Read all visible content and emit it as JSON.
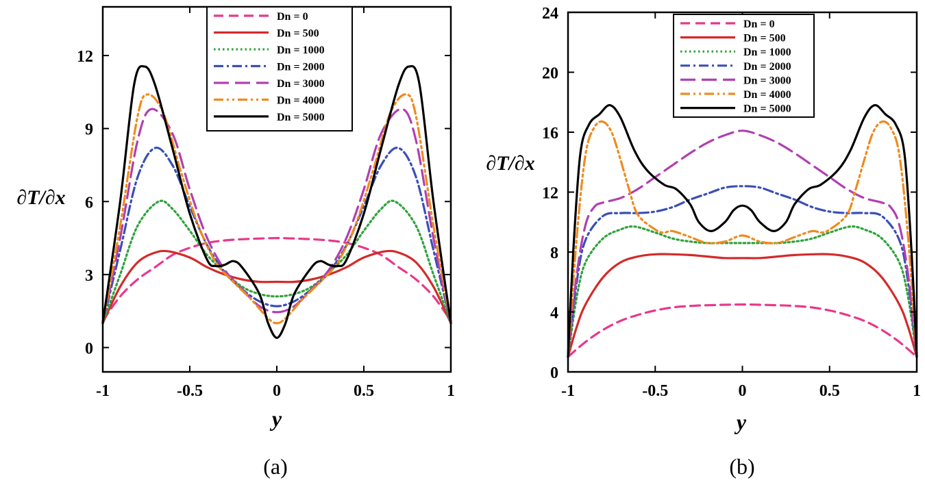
{
  "chart_data": [
    {
      "type": "line",
      "caption": "(a)",
      "xlabel": "y",
      "ylabel": "∂T/∂x",
      "xlim": [
        -1,
        1
      ],
      "ylim": [
        -1,
        14
      ],
      "xticks": [
        "-1",
        "-0.5",
        "0",
        "0.5",
        "1"
      ],
      "yticks": [
        "0",
        "3",
        "6",
        "9",
        "12"
      ],
      "legend_position": "top-center",
      "series": [
        {
          "name": "Dn = 0",
          "color": "#e8388a",
          "dash": "dashed",
          "x": [
            -1,
            -0.9,
            -0.8,
            -0.7,
            -0.6,
            -0.5,
            -0.4,
            -0.3,
            -0.2,
            -0.1,
            0,
            0.1,
            0.2,
            0.3,
            0.4,
            0.5,
            0.6,
            0.7,
            0.8,
            0.9,
            1
          ],
          "y": [
            1.1,
            2.1,
            2.8,
            3.3,
            3.8,
            4.1,
            4.3,
            4.4,
            4.45,
            4.48,
            4.5,
            4.48,
            4.45,
            4.4,
            4.3,
            4.1,
            3.8,
            3.3,
            2.8,
            2.1,
            1.1
          ]
        },
        {
          "name": "Dn = 500",
          "color": "#d42a2a",
          "dash": "solid",
          "x": [
            -1,
            -0.9,
            -0.8,
            -0.7,
            -0.62,
            -0.5,
            -0.4,
            -0.3,
            -0.2,
            -0.1,
            0,
            0.1,
            0.2,
            0.3,
            0.4,
            0.5,
            0.62,
            0.7,
            0.8,
            0.9,
            1
          ],
          "y": [
            1.0,
            2.5,
            3.5,
            3.9,
            3.95,
            3.7,
            3.3,
            3.0,
            2.8,
            2.7,
            2.7,
            2.7,
            2.8,
            3.0,
            3.3,
            3.7,
            3.95,
            3.9,
            3.5,
            2.5,
            1.0
          ]
        },
        {
          "name": "Dn = 1000",
          "color": "#2ea33a",
          "dash": "dotted",
          "x": [
            -1,
            -0.9,
            -0.8,
            -0.68,
            -0.6,
            -0.5,
            -0.4,
            -0.3,
            -0.2,
            -0.1,
            0,
            0.1,
            0.2,
            0.3,
            0.4,
            0.5,
            0.6,
            0.68,
            0.8,
            0.9,
            1
          ],
          "y": [
            1.0,
            3.0,
            5.0,
            6.0,
            5.7,
            4.8,
            3.8,
            3.1,
            2.5,
            2.2,
            2.1,
            2.2,
            2.5,
            3.1,
            3.8,
            4.8,
            5.7,
            6.0,
            5.0,
            3.0,
            1.0
          ]
        },
        {
          "name": "Dn = 2000",
          "color": "#3a4fb5",
          "dash": "dashdot",
          "x": [
            -1,
            -0.9,
            -0.8,
            -0.7,
            -0.6,
            -0.5,
            -0.4,
            -0.3,
            -0.2,
            -0.1,
            0,
            0.1,
            0.2,
            0.3,
            0.4,
            0.5,
            0.6,
            0.7,
            0.8,
            0.9,
            1
          ],
          "y": [
            1.0,
            4.0,
            7.0,
            8.2,
            7.5,
            5.8,
            4.2,
            3.1,
            2.4,
            1.9,
            1.7,
            1.9,
            2.4,
            3.1,
            4.2,
            5.8,
            7.5,
            8.2,
            7.0,
            4.0,
            1.0
          ]
        },
        {
          "name": "Dn = 3000",
          "color": "#b040b0",
          "dash": "longdash",
          "x": [
            -1,
            -0.9,
            -0.8,
            -0.72,
            -0.6,
            -0.5,
            -0.4,
            -0.3,
            -0.2,
            -0.1,
            0,
            0.1,
            0.2,
            0.3,
            0.4,
            0.5,
            0.6,
            0.72,
            0.8,
            0.9,
            1
          ],
          "y": [
            1.0,
            4.5,
            8.5,
            9.8,
            8.8,
            6.5,
            4.5,
            3.2,
            2.4,
            1.7,
            1.45,
            1.7,
            2.4,
            3.2,
            4.5,
            6.5,
            8.8,
            9.8,
            8.5,
            4.5,
            1.0
          ]
        },
        {
          "name": "Dn = 4000",
          "color": "#f08a1e",
          "dash": "dashdotdot",
          "x": [
            -1,
            -0.9,
            -0.8,
            -0.74,
            -0.65,
            -0.55,
            -0.45,
            -0.35,
            -0.25,
            -0.15,
            -0.05,
            0,
            0.05,
            0.15,
            0.25,
            0.35,
            0.45,
            0.55,
            0.65,
            0.74,
            0.8,
            0.9,
            1
          ],
          "y": [
            1.0,
            5.0,
            9.5,
            10.4,
            9.6,
            7.2,
            5.0,
            3.5,
            2.7,
            2.0,
            1.2,
            1.0,
            1.2,
            2.0,
            2.7,
            3.5,
            5.0,
            7.2,
            9.6,
            10.4,
            9.5,
            5.0,
            1.0
          ]
        },
        {
          "name": "Dn = 5000",
          "color": "#000000",
          "dash": "solid",
          "x": [
            -1,
            -0.9,
            -0.82,
            -0.76,
            -0.7,
            -0.6,
            -0.5,
            -0.4,
            -0.35,
            -0.3,
            -0.25,
            -0.2,
            -0.1,
            -0.05,
            0,
            0.05,
            0.1,
            0.2,
            0.25,
            0.3,
            0.35,
            0.4,
            0.5,
            0.6,
            0.7,
            0.76,
            0.82,
            0.9,
            1
          ],
          "y": [
            1.0,
            6.0,
            10.8,
            11.55,
            10.8,
            8.2,
            5.5,
            3.6,
            3.35,
            3.4,
            3.55,
            3.3,
            2.2,
            1.0,
            0.4,
            1.0,
            2.2,
            3.3,
            3.55,
            3.4,
            3.35,
            3.6,
            5.5,
            8.2,
            10.8,
            11.55,
            10.8,
            6.0,
            1.0
          ]
        }
      ]
    },
    {
      "type": "line",
      "caption": "(b)",
      "xlabel": "y",
      "ylabel": "∂T/∂x",
      "xlim": [
        -1,
        1
      ],
      "ylim": [
        0,
        24
      ],
      "xticks": [
        "-1",
        "-0.5",
        "0",
        "0.5",
        "1"
      ],
      "yticks": [
        "0",
        "4",
        "8",
        "12",
        "16",
        "20",
        "24"
      ],
      "legend_position": "top-center",
      "series": [
        {
          "name": "Dn = 0",
          "color": "#e8388a",
          "dash": "dashed",
          "x": [
            -1,
            -0.9,
            -0.8,
            -0.7,
            -0.6,
            -0.5,
            -0.4,
            -0.3,
            -0.2,
            -0.1,
            0,
            0.1,
            0.2,
            0.3,
            0.4,
            0.5,
            0.6,
            0.7,
            0.8,
            0.9,
            1
          ],
          "y": [
            1.0,
            2.0,
            2.8,
            3.4,
            3.8,
            4.1,
            4.3,
            4.4,
            4.45,
            4.48,
            4.5,
            4.48,
            4.45,
            4.4,
            4.3,
            4.1,
            3.8,
            3.4,
            2.8,
            2.0,
            1.0
          ]
        },
        {
          "name": "Dn = 500",
          "color": "#d42a2a",
          "dash": "solid",
          "x": [
            -1,
            -0.95,
            -0.9,
            -0.8,
            -0.7,
            -0.6,
            -0.5,
            -0.4,
            -0.3,
            -0.2,
            -0.1,
            0,
            0.1,
            0.2,
            0.3,
            0.4,
            0.5,
            0.6,
            0.7,
            0.8,
            0.9,
            0.95,
            1
          ],
          "y": [
            1.0,
            3.0,
            4.5,
            6.3,
            7.3,
            7.7,
            7.85,
            7.85,
            7.8,
            7.7,
            7.6,
            7.6,
            7.6,
            7.7,
            7.8,
            7.85,
            7.85,
            7.7,
            7.3,
            6.3,
            4.5,
            3.0,
            1.0
          ]
        },
        {
          "name": "Dn = 1000",
          "color": "#2ea33a",
          "dash": "dotted",
          "x": [
            -1,
            -0.95,
            -0.9,
            -0.8,
            -0.7,
            -0.62,
            -0.5,
            -0.4,
            -0.3,
            -0.2,
            -0.1,
            0,
            0.1,
            0.2,
            0.3,
            0.4,
            0.5,
            0.62,
            0.7,
            0.8,
            0.9,
            0.95,
            1
          ],
          "y": [
            1.0,
            5.0,
            7.3,
            8.9,
            9.5,
            9.7,
            9.3,
            8.9,
            8.7,
            8.6,
            8.6,
            8.6,
            8.6,
            8.6,
            8.7,
            8.9,
            9.3,
            9.7,
            9.5,
            8.9,
            7.3,
            5.0,
            1.0
          ]
        },
        {
          "name": "Dn = 2000",
          "color": "#3a4fb5",
          "dash": "dashdot",
          "x": [
            -1,
            -0.95,
            -0.9,
            -0.8,
            -0.7,
            -0.6,
            -0.5,
            -0.4,
            -0.3,
            -0.2,
            -0.1,
            0,
            0.1,
            0.2,
            0.3,
            0.4,
            0.5,
            0.6,
            0.7,
            0.8,
            0.9,
            0.95,
            1
          ],
          "y": [
            1.0,
            6.0,
            8.8,
            10.4,
            10.6,
            10.6,
            10.7,
            11.0,
            11.5,
            11.9,
            12.3,
            12.4,
            12.3,
            11.9,
            11.5,
            11.0,
            10.7,
            10.6,
            10.6,
            10.4,
            8.8,
            6.0,
            1.0
          ]
        },
        {
          "name": "Dn = 3000",
          "color": "#b040b0",
          "dash": "longdash",
          "x": [
            -1,
            -0.95,
            -0.9,
            -0.85,
            -0.8,
            -0.7,
            -0.6,
            -0.5,
            -0.4,
            -0.3,
            -0.2,
            -0.1,
            0,
            0.1,
            0.2,
            0.3,
            0.4,
            0.5,
            0.6,
            0.7,
            0.8,
            0.85,
            0.9,
            0.95,
            1
          ],
          "y": [
            1.0,
            6.5,
            9.8,
            11.0,
            11.3,
            11.6,
            12.2,
            13.0,
            13.8,
            14.6,
            15.3,
            15.8,
            16.1,
            15.8,
            15.3,
            14.6,
            13.8,
            13.0,
            12.2,
            11.6,
            11.3,
            11.0,
            9.8,
            6.5,
            1.0
          ]
        },
        {
          "name": "Dn = 4000",
          "color": "#f08a1e",
          "dash": "dashdotdot",
          "x": [
            -1,
            -0.95,
            -0.9,
            -0.85,
            -0.8,
            -0.75,
            -0.7,
            -0.65,
            -0.6,
            -0.5,
            -0.45,
            -0.4,
            -0.3,
            -0.2,
            -0.1,
            0,
            0.1,
            0.2,
            0.3,
            0.4,
            0.45,
            0.5,
            0.6,
            0.65,
            0.7,
            0.75,
            0.8,
            0.85,
            0.9,
            0.95,
            1
          ],
          "y": [
            1.0,
            9.0,
            14.5,
            16.3,
            16.7,
            16.0,
            14.2,
            12.2,
            10.5,
            9.5,
            9.3,
            9.4,
            9.0,
            8.6,
            8.7,
            9.1,
            8.7,
            8.6,
            9.0,
            9.4,
            9.3,
            9.5,
            10.5,
            12.2,
            14.2,
            16.0,
            16.7,
            16.3,
            14.5,
            9.0,
            1.0
          ]
        },
        {
          "name": "Dn = 5000",
          "color": "#000000",
          "dash": "solid",
          "x": [
            -1,
            -0.97,
            -0.93,
            -0.88,
            -0.82,
            -0.76,
            -0.7,
            -0.62,
            -0.55,
            -0.45,
            -0.38,
            -0.3,
            -0.25,
            -0.18,
            -0.1,
            -0.05,
            0,
            0.05,
            0.1,
            0.18,
            0.25,
            0.3,
            0.38,
            0.45,
            0.55,
            0.62,
            0.7,
            0.76,
            0.82,
            0.88,
            0.93,
            0.97,
            1
          ],
          "y": [
            1.0,
            8.0,
            14.5,
            16.5,
            17.2,
            17.8,
            17.0,
            14.8,
            13.5,
            12.5,
            12.2,
            11.2,
            10.0,
            9.4,
            10.0,
            10.8,
            11.1,
            10.8,
            10.0,
            9.4,
            10.0,
            11.2,
            12.2,
            12.5,
            13.5,
            14.8,
            17.0,
            17.8,
            17.2,
            16.5,
            14.5,
            8.0,
            1.0
          ]
        }
      ]
    }
  ]
}
